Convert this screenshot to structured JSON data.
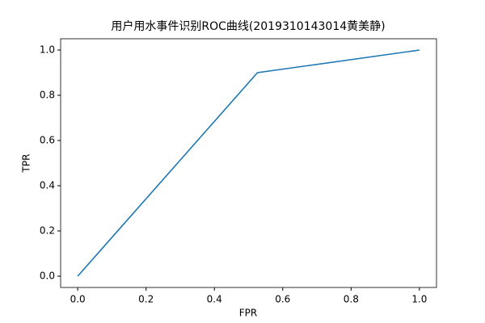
{
  "chart_data": {
    "type": "line",
    "title": "用户用水事件识别ROC曲线(2019310143014黄美静)",
    "x_label": "FPR",
    "y_label": "TPR",
    "x": [
      0,
      0.526,
      1
    ],
    "series": [
      {
        "color": "#1f77b4",
        "values": [
          0,
          0.9,
          1
        ]
      }
    ],
    "xlim": [
      -0.05,
      1.05
    ],
    "ylim": [
      -0.05,
      1.05
    ],
    "xticks": [
      {
        "value": 0,
        "label": "0.0"
      },
      0.2,
      0.4,
      0.6,
      0.8,
      {
        "value": 1,
        "label": "1.0"
      }
    ],
    "yticks": [
      {
        "value": 0,
        "label": "0.0"
      },
      0.2,
      0.4,
      0.6,
      0.8,
      {
        "value": 1,
        "label": "1.0"
      }
    ],
    "grid": false
  }
}
